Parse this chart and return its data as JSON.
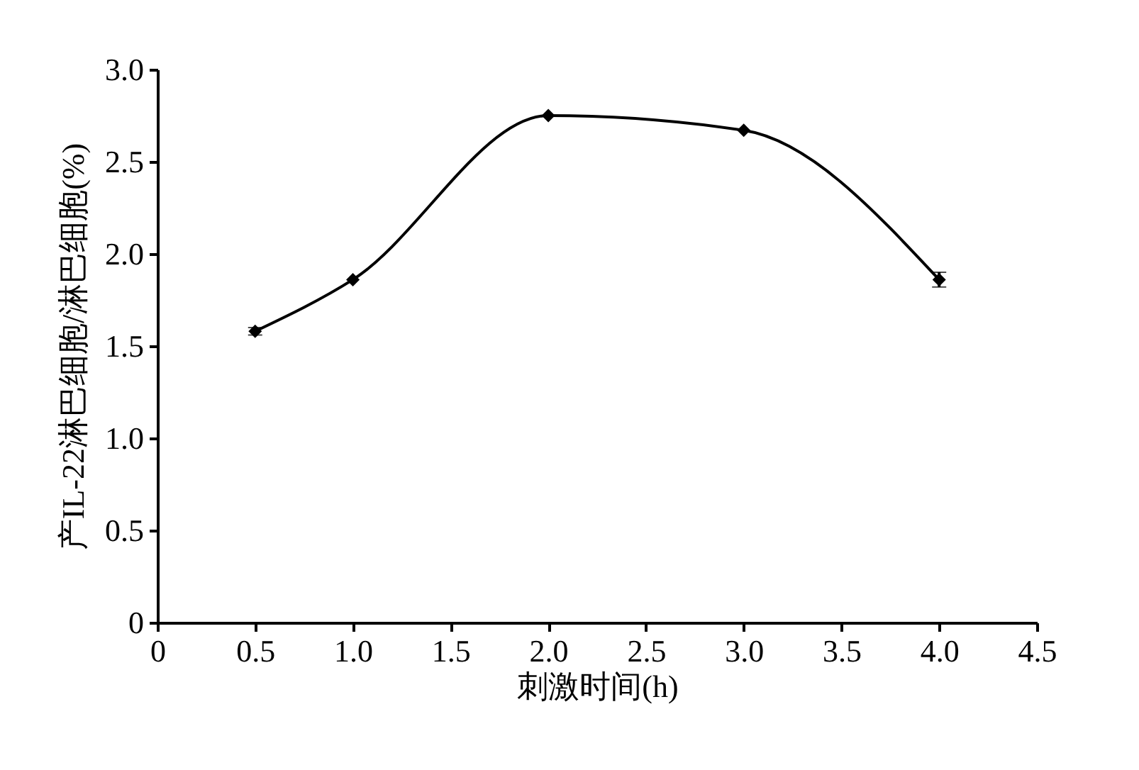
{
  "chart_data": {
    "type": "line",
    "xlabel": "刺激时间(h)",
    "ylabel": "产IL-22淋巴细胞/淋巴细胞(%)",
    "x": [
      0.5,
      1.0,
      2.0,
      3.0,
      4.0
    ],
    "series": [
      {
        "color": "#000000",
        "values": [
          1.58,
          1.86,
          2.75,
          2.67,
          1.86
        ],
        "errors": [
          0.02,
          null,
          null,
          null,
          0.04
        ]
      }
    ],
    "xlim": [
      0,
      4.5
    ],
    "xticks": [
      0,
      {
        "value": 0.5,
        "label": "0.5"
      },
      {
        "value": 1,
        "label": "1.0"
      },
      {
        "value": 1.5,
        "label": "1.5"
      },
      {
        "value": 2,
        "label": "2.0"
      },
      {
        "value": 2.5,
        "label": "2.5"
      },
      {
        "value": 3,
        "label": "3.0"
      },
      {
        "value": 3.5,
        "label": "3.5"
      },
      {
        "value": 4,
        "label": "4.0"
      },
      {
        "value": 4.5,
        "label": "4.5"
      }
    ],
    "ylim": [
      0,
      3
    ],
    "yticks": [
      0,
      {
        "value": 0.5,
        "label": "0.5"
      },
      {
        "value": 1,
        "label": "1.0"
      },
      {
        "value": 1.5,
        "label": "1.5"
      },
      {
        "value": 2,
        "label": "2.0"
      },
      {
        "value": 2.5,
        "label": "2.5"
      },
      {
        "value": 3,
        "label": "3.0"
      }
    ],
    "grid": false,
    "marker": "diamond",
    "line_style": "solid"
  }
}
